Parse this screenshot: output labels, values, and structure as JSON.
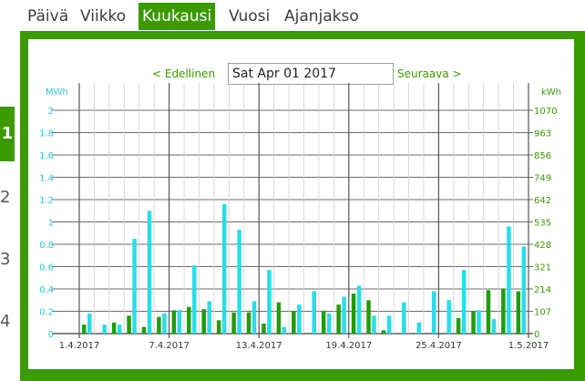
{
  "tabs": [
    {
      "label": "Päivä",
      "active": false
    },
    {
      "label": "Viikko",
      "active": false
    },
    {
      "label": "Kuukausi",
      "active": true
    },
    {
      "label": "Vuosi",
      "active": false
    },
    {
      "label": "Ajanjakso",
      "active": false
    }
  ],
  "side_numbers": [
    "1",
    "2",
    "3",
    "4"
  ],
  "nav": {
    "prev_label": "< Edellinen",
    "next_label": "Seuraava >",
    "date_value": "Sat Apr 01 2017"
  },
  "colors": {
    "accent": "#3a9a00",
    "series_cyan": "#29dde8",
    "series_green": "#1f9d0c",
    "left_axis": "#29c6e0",
    "right_axis": "#3a9a00"
  },
  "chart_data": {
    "type": "bar",
    "left_axis": {
      "unit": "MWh",
      "ticks": [
        "0",
        "0.2",
        "0.4",
        "0.6",
        "0.8",
        "1",
        "1.2",
        "1.4",
        "1.6",
        "1.8",
        "2"
      ],
      "ylim": [
        0,
        2
      ]
    },
    "right_axis": {
      "unit": "kWh",
      "ticks": [
        "0",
        "107",
        "214",
        "321",
        "428",
        "535",
        "642",
        "749",
        "856",
        "963",
        "1070"
      ],
      "ylim": [
        0,
        1070
      ]
    },
    "x_tick_labels": [
      {
        "day": 1,
        "label": "1.4.2017"
      },
      {
        "day": 7,
        "label": "7.4.2017"
      },
      {
        "day": 13,
        "label": "13.4.2017"
      },
      {
        "day": 19,
        "label": "19.4.2017"
      },
      {
        "day": 25,
        "label": "25.4.2017"
      },
      {
        "day": 31,
        "label": "1.5.2017"
      }
    ],
    "days": [
      1,
      2,
      3,
      4,
      5,
      6,
      7,
      8,
      9,
      10,
      11,
      12,
      13,
      14,
      15,
      16,
      17,
      18,
      19,
      20,
      21,
      22,
      23,
      24,
      25,
      26,
      27,
      28,
      29,
      30
    ],
    "series": [
      {
        "axis": "right",
        "values": [
          43,
          0,
          53,
          86,
          32,
          80,
          112,
          128,
          117,
          64,
          101,
          102,
          48,
          150,
          107,
          0,
          107,
          139,
          192,
          160,
          16,
          0,
          0,
          0,
          0,
          75,
          107,
          208,
          214,
          42
        ]
      },
      {
        "axis": "left",
        "values": [
          0.18,
          0.08,
          0.08,
          0.85,
          1.1,
          0.18,
          0.21,
          0.61,
          0.29,
          1.16,
          0.93,
          0.29,
          0.57,
          0.06,
          0.26,
          0.38,
          0.18,
          0.33,
          0.43,
          0.16,
          0.16,
          0.28,
          0.1,
          0.38,
          0.3,
          0.57,
          0.21,
          0.13,
          0.96,
          0.78
        ]
      },
      {
        "axis": "right",
        "values": [
          0,
          0,
          0,
          0,
          0,
          0,
          0,
          0,
          0,
          0,
          0,
          0,
          0,
          0,
          0,
          0,
          0,
          0,
          0,
          0,
          0,
          0,
          0,
          0,
          0,
          0,
          0,
          0,
          0,
          203
        ]
      },
      {
        "axis": "left",
        "values": [
          0,
          0,
          0,
          0,
          0,
          0,
          0,
          0,
          0,
          0,
          0,
          0,
          0,
          0,
          0,
          0,
          0,
          0,
          0,
          0,
          0,
          0,
          0,
          0,
          0,
          0,
          0,
          0,
          0,
          0.38
        ]
      }
    ],
    "grid": true
  }
}
